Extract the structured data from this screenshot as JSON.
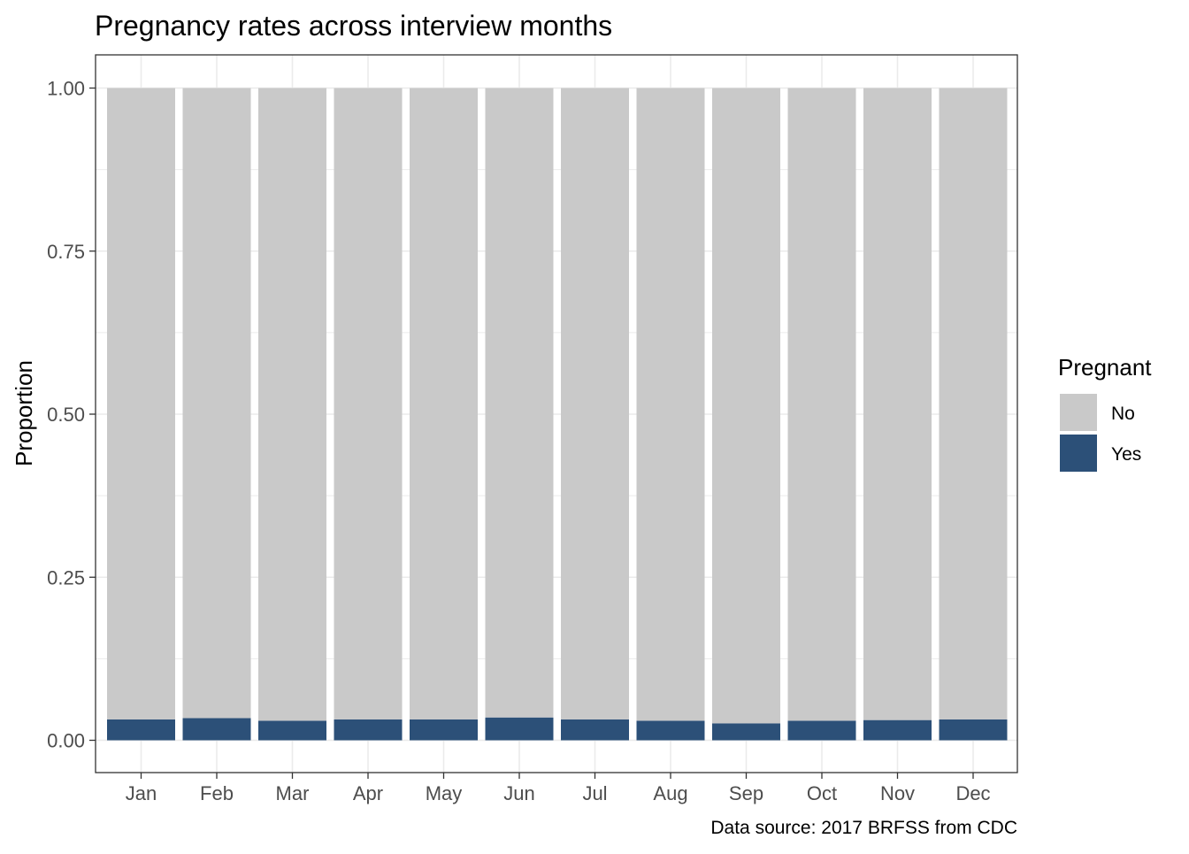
{
  "chart_data": {
    "type": "bar",
    "stacked": true,
    "title": "Pregnancy rates across interview months",
    "xlabel": "",
    "ylabel": "Proportion",
    "ylim": [
      0,
      1
    ],
    "yticks": [
      "0.00",
      "0.25",
      "0.50",
      "0.75",
      "1.00"
    ],
    "ytick_values": [
      0,
      0.25,
      0.5,
      0.75,
      1.0
    ],
    "grid": true,
    "categories": [
      "Jan",
      "Feb",
      "Mar",
      "Apr",
      "May",
      "Jun",
      "Jul",
      "Aug",
      "Sep",
      "Oct",
      "Nov",
      "Dec"
    ],
    "series": [
      {
        "name": "No",
        "color": "#c9c9c9",
        "values": [
          0.968,
          0.966,
          0.97,
          0.968,
          0.968,
          0.965,
          0.968,
          0.97,
          0.974,
          0.97,
          0.969,
          0.968
        ]
      },
      {
        "name": "Yes",
        "color": "#2c5078",
        "values": [
          0.032,
          0.034,
          0.03,
          0.032,
          0.032,
          0.035,
          0.032,
          0.03,
          0.026,
          0.03,
          0.031,
          0.032
        ]
      }
    ],
    "legend": {
      "title": "Pregnant",
      "placement": "right",
      "entries": [
        "No",
        "Yes"
      ]
    },
    "caption": "Data source: 2017 BRFSS from CDC"
  }
}
